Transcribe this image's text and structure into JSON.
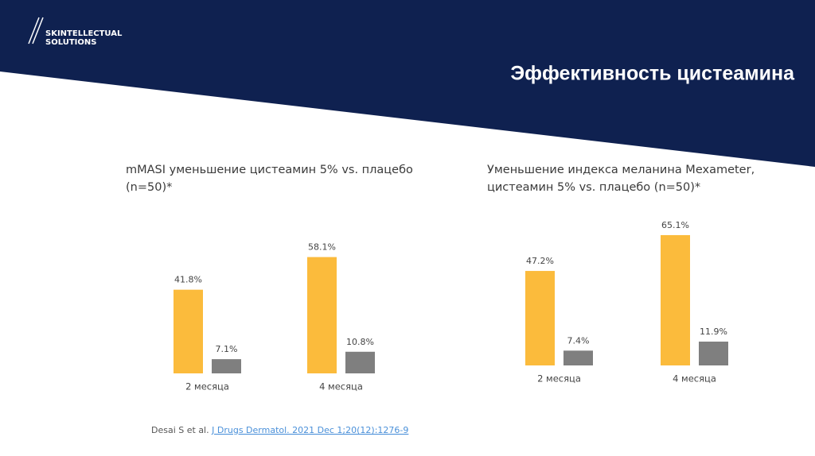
{
  "logo": {
    "line1": "SKINTELLECTUAL",
    "line2": "SOLUTIONS"
  },
  "title": "Эффективность цистеамина",
  "chart_data": [
    {
      "type": "bar",
      "title": "mMASI уменьшение цистеамин 5% vs. плацебо (n=50)*",
      "categories": [
        "2 месяца",
        "4 месяца"
      ],
      "series": [
        {
          "color": "#fbbb3c",
          "values": [
            41.8,
            58.1
          ],
          "value_labels": [
            "41.8%",
            "58.1%"
          ]
        },
        {
          "color": "#7f7f7f",
          "values": [
            7.1,
            10.8
          ],
          "value_labels": [
            "7.1%",
            "10.8%"
          ]
        }
      ]
    },
    {
      "type": "bar",
      "title": "Уменьшение индекса меланина Mexameter, цистеамин 5% vs. плацебо (n=50)*",
      "categories": [
        "2 месяца",
        "4 месяца"
      ],
      "series": [
        {
          "color": "#fbbb3c",
          "values": [
            47.2,
            65.1
          ],
          "value_labels": [
            "47.2%",
            "65.1%"
          ]
        },
        {
          "color": "#7f7f7f",
          "values": [
            7.4,
            11.9
          ],
          "value_labels": [
            "7.4%",
            "11.9%"
          ]
        }
      ]
    }
  ],
  "citation": {
    "author": "Desai S et al.",
    "link": "J Drugs Dermatol. 2021 Dec 1;20(12):1276-9"
  }
}
